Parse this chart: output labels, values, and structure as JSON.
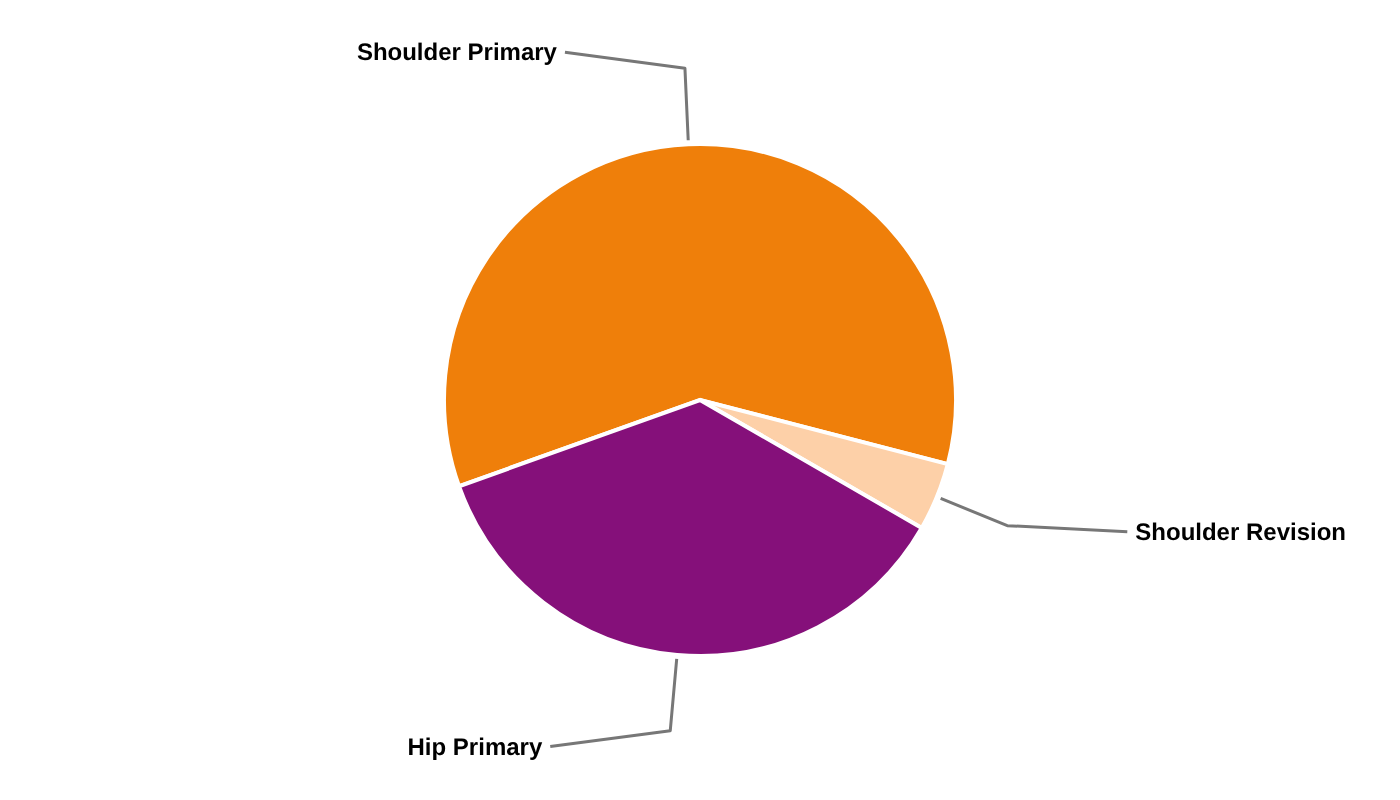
{
  "chart_data": {
    "type": "pie",
    "categories": [
      "Shoulder Primary",
      "Shoulder Revision",
      "Hip Primary"
    ],
    "values": [
      59.5,
      4.3,
      36.2
    ],
    "colors": [
      "#ef7f0a",
      "#fdd0a8",
      "#85107a"
    ]
  }
}
